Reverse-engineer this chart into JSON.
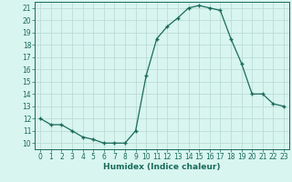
{
  "x": [
    0,
    1,
    2,
    3,
    4,
    5,
    6,
    7,
    8,
    9,
    10,
    11,
    12,
    13,
    14,
    15,
    16,
    17,
    18,
    19,
    20,
    21,
    22,
    23
  ],
  "y": [
    12.0,
    11.5,
    11.5,
    11.0,
    10.5,
    10.3,
    10.0,
    10.0,
    10.0,
    11.0,
    15.5,
    18.5,
    19.5,
    20.2,
    21.0,
    21.2,
    21.0,
    20.8,
    18.5,
    16.5,
    14.0,
    14.0,
    13.2,
    13.0
  ],
  "line_color": "#1a6b5a",
  "marker_color": "#1a6b5a",
  "bg_color": "#d8f5f0",
  "grid_color": "#b8d8d0",
  "xlabel": "Humidex (Indice chaleur)",
  "xlabel_color": "#1a6b5a",
  "axis_color": "#1a6b5a",
  "tick_color": "#1a6b5a",
  "ylim": [
    9.5,
    21.5
  ],
  "xlim": [
    -0.5,
    23.5
  ],
  "yticks": [
    10,
    11,
    12,
    13,
    14,
    15,
    16,
    17,
    18,
    19,
    20,
    21
  ],
  "xticks": [
    0,
    1,
    2,
    3,
    4,
    5,
    6,
    7,
    8,
    9,
    10,
    11,
    12,
    13,
    14,
    15,
    16,
    17,
    18,
    19,
    20,
    21,
    22,
    23
  ],
  "font_size": 5.5,
  "xlabel_font_size": 6.5
}
